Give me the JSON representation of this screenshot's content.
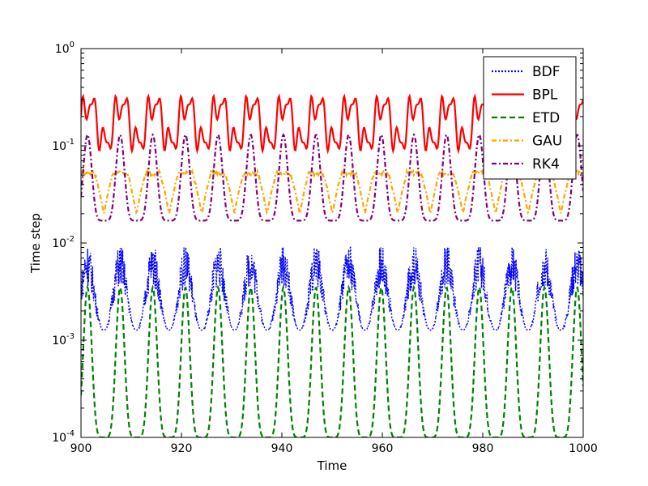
{
  "chart_data": {
    "type": "line",
    "title": "",
    "xlabel": "Time",
    "ylabel": "Time step",
    "xlim": [
      900,
      1000
    ],
    "ylim": [
      0.0001,
      1
    ],
    "yscale": "log",
    "x_ticks": [
      900,
      920,
      940,
      960,
      980,
      1000
    ],
    "x_tick_labels": [
      "900",
      "920",
      "940",
      "960",
      "980",
      "1000"
    ],
    "y_tick_labels": [
      {
        "base": "10",
        "exp": "-4"
      },
      {
        "base": "10",
        "exp": "-3"
      },
      {
        "base": "10",
        "exp": "-2"
      },
      {
        "base": "10",
        "exp": "-1"
      },
      {
        "base": "10",
        "exp": "0"
      }
    ],
    "oscillation_period": 6.5,
    "grid": false,
    "legend_position": "top-right",
    "series": [
      {
        "name": "BDF",
        "color": "#0000ff",
        "style": "dotted",
        "profile": "noisy",
        "min": 0.0009,
        "max": 0.009
      },
      {
        "name": "BPL",
        "color": "#ff0000",
        "style": "solid",
        "profile": "multi-peak",
        "min": 0.07,
        "max": 0.35
      },
      {
        "name": "ETD",
        "color": "#008000",
        "style": "dashed",
        "profile": "spike",
        "min": 0.0001,
        "max": 0.0035
      },
      {
        "name": "GAU",
        "color": "#ffa500",
        "style": "dashdot",
        "profile": "plateau",
        "min": 0.02,
        "max": 0.055
      },
      {
        "name": "RK4",
        "color": "#800080",
        "style": "dashdot",
        "profile": "spike",
        "min": 0.017,
        "max": 0.13
      }
    ]
  }
}
